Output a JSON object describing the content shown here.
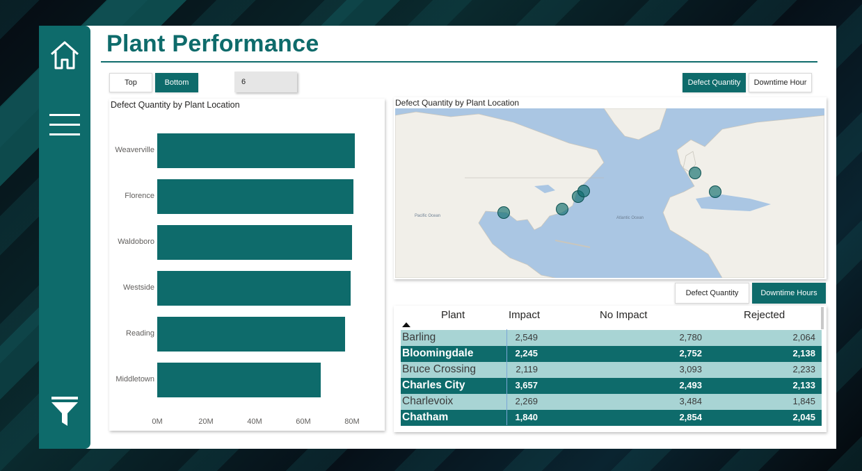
{
  "page": {
    "title": "Plant Performance"
  },
  "sidebar": {
    "icons": [
      "home-icon",
      "menu-icon",
      "filter-icon"
    ]
  },
  "rank_toggle": {
    "top_label": "Top",
    "bottom_label": "Bottom",
    "active": "Bottom"
  },
  "top_n": {
    "value": "6"
  },
  "map_metric_toggle": {
    "defect_label": "Defect Quantity",
    "downtime_label": "Downtime Hour",
    "active": "Defect Quantity"
  },
  "table_metric_toggle": {
    "defect_label": "Defect Quantity",
    "downtime_label": "Downtime Hours",
    "active": "Downtime Hours"
  },
  "bar_chart": {
    "title": "Defect Quantity by Plant Location"
  },
  "chart_data": {
    "type": "bar",
    "orientation": "horizontal",
    "title": "Defect Quantity by Plant Location",
    "categories": [
      "Weaverville",
      "Florence",
      "Waldoboro",
      "Westside",
      "Reading",
      "Middletown"
    ],
    "values": [
      81,
      80.5,
      80,
      79.5,
      77,
      67
    ],
    "x_ticks": [
      "0M",
      "20M",
      "40M",
      "60M",
      "80M"
    ],
    "xlim": [
      0,
      80
    ],
    "grid": false,
    "color": "#0e6b6b"
  },
  "map": {
    "title": "Defect Quantity by Plant Location",
    "labels": {
      "ocean": "Pacific Ocean",
      "ocean2": "Atlantic Ocean"
    },
    "markers": 7
  },
  "table": {
    "headers": [
      "Plant",
      "Impact",
      "No Impact",
      "Rejected"
    ],
    "rows": [
      {
        "plant": "Barling",
        "impact": "2,549",
        "no_impact": "2,780",
        "rejected": "2,064"
      },
      {
        "plant": "Bloomingdale",
        "impact": "2,245",
        "no_impact": "2,752",
        "rejected": "2,138"
      },
      {
        "plant": "Bruce Crossing",
        "impact": "2,119",
        "no_impact": "3,093",
        "rejected": "2,233"
      },
      {
        "plant": "Charles City",
        "impact": "3,657",
        "no_impact": "2,493",
        "rejected": "2,133"
      },
      {
        "plant": "Charlevoix",
        "impact": "2,269",
        "no_impact": "3,484",
        "rejected": "1,845"
      },
      {
        "plant": "Chatham",
        "impact": "1,840",
        "no_impact": "2,854",
        "rejected": "2,045"
      }
    ]
  },
  "colors": {
    "accent": "#0e6b6b",
    "row_light": "#a8d4d4"
  }
}
